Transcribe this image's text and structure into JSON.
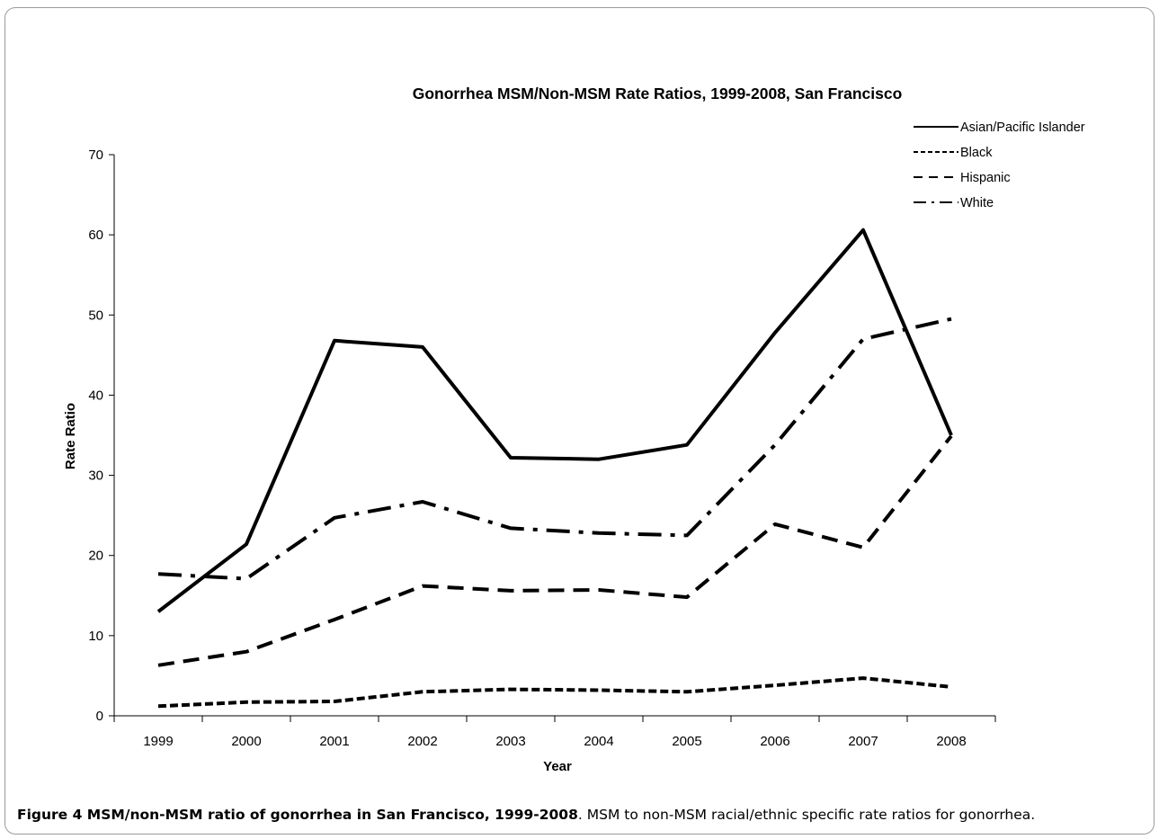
{
  "chart_data": {
    "type": "line",
    "title": "Gonorrhea MSM/Non-MSM Rate Ratios, 1999-2008, San Francisco",
    "xlabel": "Year",
    "ylabel": "Rate Ratio",
    "categories": [
      "1999",
      "2000",
      "2001",
      "2002",
      "2003",
      "2004",
      "2005",
      "2006",
      "2007",
      "2008"
    ],
    "ylim": [
      0,
      70
    ],
    "yticks": [
      0,
      10,
      20,
      30,
      40,
      50,
      60,
      70
    ],
    "grid": false,
    "legend_position": "top-right",
    "series": [
      {
        "name": "Asian/Pacific Islander",
        "line_style": "solid",
        "values": [
          13.0,
          21.4,
          46.8,
          46.0,
          32.2,
          32.0,
          33.8,
          47.8,
          60.6,
          35.0
        ]
      },
      {
        "name": "Black",
        "line_style": "dotted",
        "values": [
          1.2,
          1.7,
          1.8,
          3.0,
          3.3,
          3.2,
          3.0,
          3.8,
          4.7,
          3.6
        ]
      },
      {
        "name": "Hispanic",
        "line_style": "dashed",
        "values": [
          6.3,
          8.0,
          12.0,
          16.2,
          15.6,
          15.7,
          14.8,
          23.9,
          21.0,
          34.9
        ]
      },
      {
        "name": "White",
        "line_style": "dash-dot",
        "values": [
          17.7,
          17.1,
          24.7,
          26.7,
          23.4,
          22.8,
          22.5,
          33.8,
          47.0,
          49.5
        ]
      }
    ],
    "colors": {
      "line": "#000000",
      "axis": "#000000"
    }
  },
  "caption": {
    "bold": "Figure 4 MSM/non-MSM ratio of gonorrhea in San Francisco, 1999-2008",
    "rest": ". MSM to non-MSM racial/ethnic specific rate ratios for gonorrhea."
  }
}
